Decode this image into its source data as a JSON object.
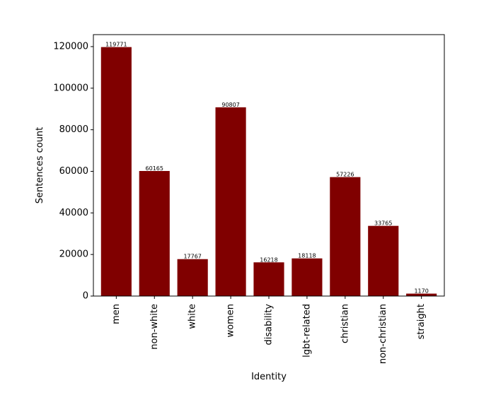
{
  "chart_data": {
    "type": "bar",
    "title": "",
    "xlabel": "Identity",
    "ylabel": "Sentences count",
    "categories": [
      "men",
      "non-white",
      "white",
      "women",
      "disability",
      "lgbt-related",
      "christian",
      "non-christian",
      "straight"
    ],
    "values": [
      119771,
      60165,
      17767,
      90807,
      16218,
      18118,
      57226,
      33765,
      1170
    ],
    "data_labels": [
      "119771",
      "60165",
      "17767",
      "90807",
      "16218",
      "18118",
      "57226",
      "33765",
      "1170"
    ],
    "ylim": [
      0,
      125764
    ],
    "yticks": [
      0,
      20000,
      40000,
      60000,
      80000,
      100000,
      120000
    ],
    "ytick_labels": [
      "0",
      "20000",
      "40000",
      "60000",
      "80000",
      "100000",
      "120000"
    ],
    "bar_color": "#800000",
    "grid": false,
    "legend": "none"
  }
}
